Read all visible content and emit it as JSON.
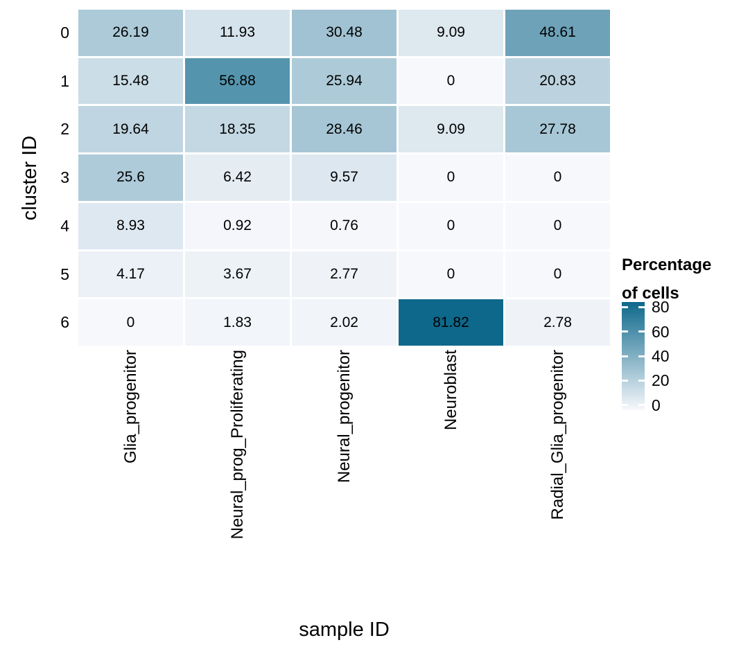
{
  "chart_data": {
    "type": "heatmap",
    "xlabel": "sample ID",
    "ylabel": "cluster ID",
    "columns": [
      "Glia_progenitor",
      "Neural_prog_Proliferating",
      "Neural_progenitor",
      "Neuroblast",
      "Radial_Glia_progenitor"
    ],
    "rows": [
      "0",
      "1",
      "2",
      "3",
      "4",
      "5",
      "6"
    ],
    "values": [
      [
        26.19,
        11.93,
        30.48,
        9.09,
        48.61
      ],
      [
        15.48,
        56.88,
        25.94,
        0,
        20.83
      ],
      [
        19.64,
        18.35,
        28.46,
        9.09,
        27.78
      ],
      [
        25.6,
        6.42,
        9.57,
        0,
        0
      ],
      [
        8.93,
        0.92,
        0.76,
        0,
        0
      ],
      [
        4.17,
        3.67,
        2.77,
        0,
        0
      ],
      [
        0,
        1.83,
        2.02,
        81.82,
        2.78
      ]
    ],
    "domain": [
      0,
      81.82
    ],
    "colors": {
      "low": "#F7F8FC",
      "high": "#0E688B"
    },
    "legend": {
      "title_line1": "Percentage",
      "title_line2": "of cells",
      "ticks": [
        80,
        60,
        40,
        20,
        0
      ]
    },
    "grid": "off",
    "legend_position": "right"
  }
}
